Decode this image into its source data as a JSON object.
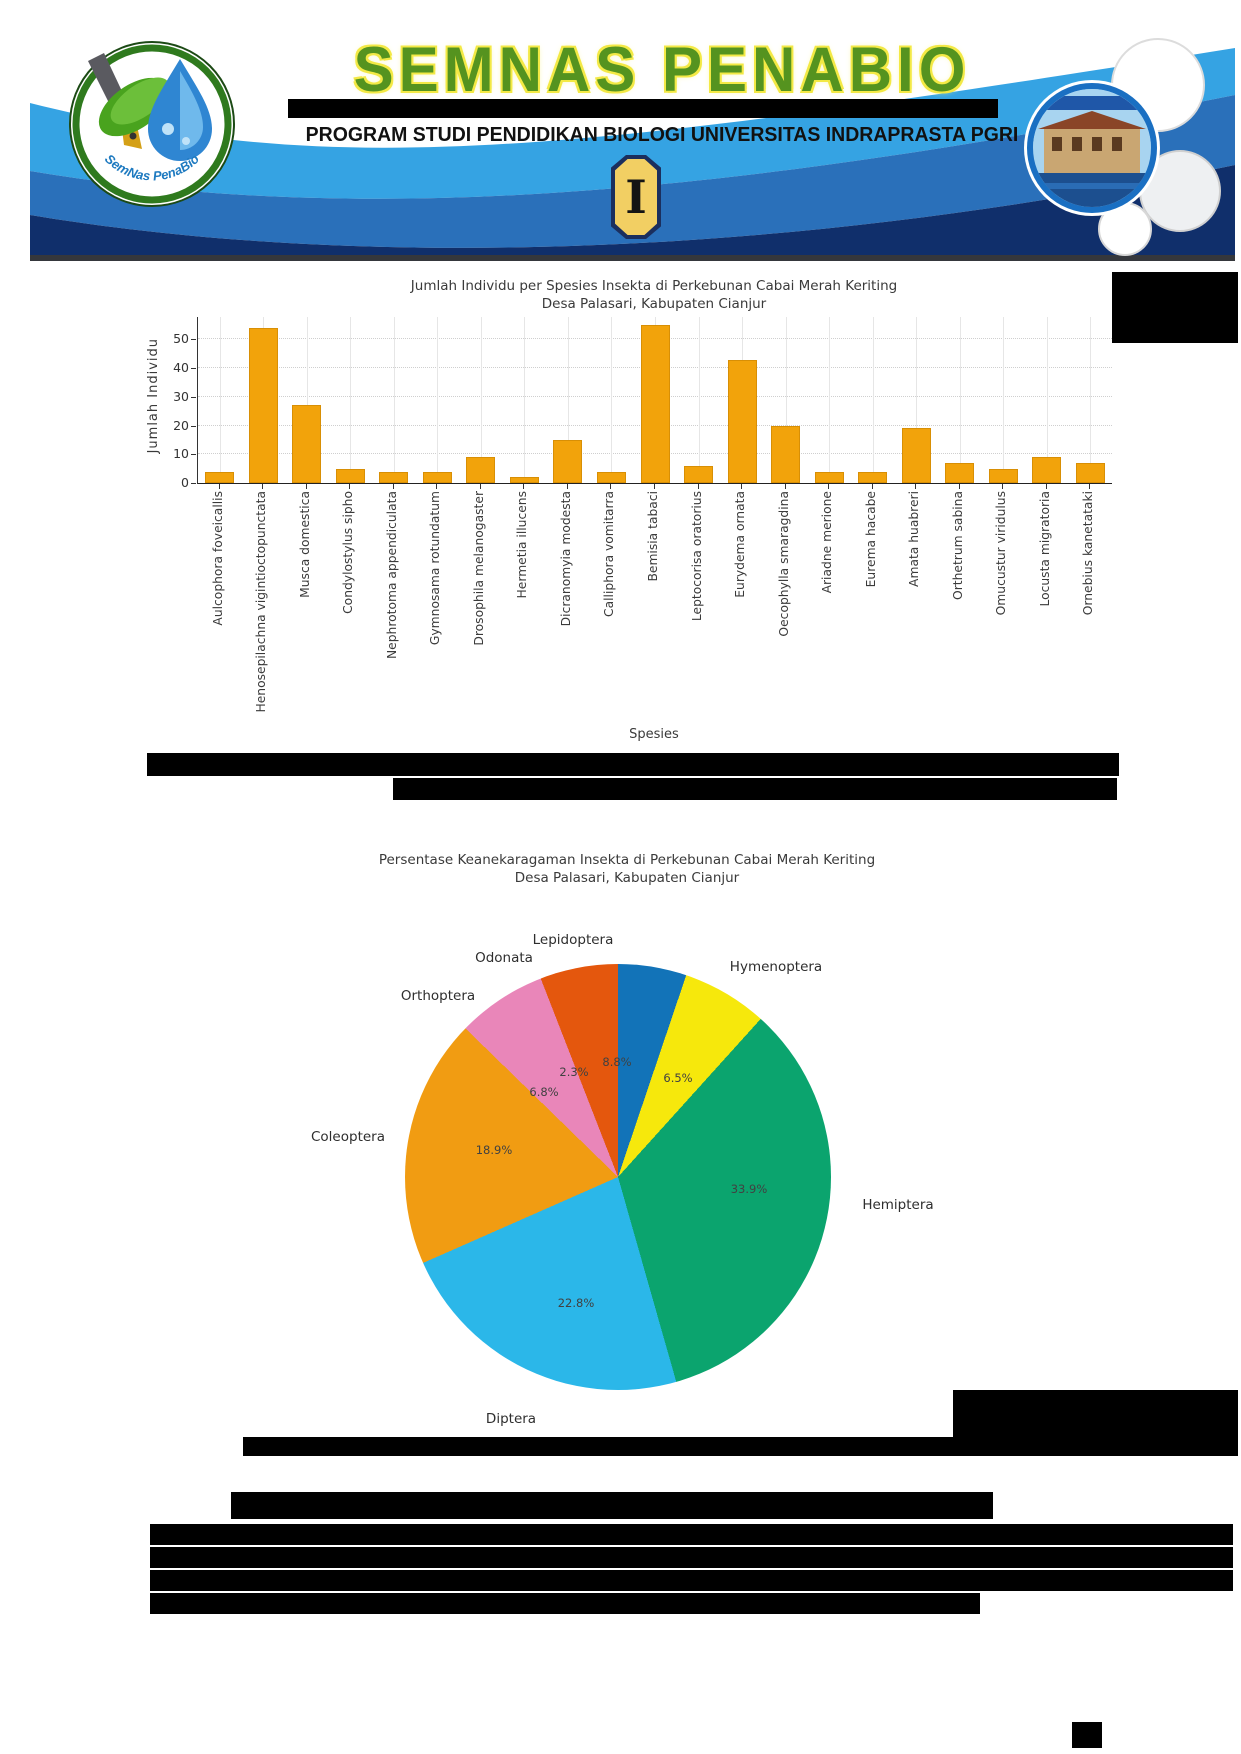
{
  "header": {
    "title": "SEMNAS PENABIO",
    "subtitle": "PROGRAM STUDI PENDIDIKAN BIOLOGI UNIVERSITAS INDRAPRASTA PGRI",
    "edition_badge": "I",
    "logo_ribbon_text": "SemNas PenaBio"
  },
  "chart_data": [
    {
      "type": "bar",
      "title": "Jumlah Individu per Spesies Insekta di Perkebunan Cabai Merah Keriting",
      "subtitle": "Desa Palasari, Kabupaten Cianjur",
      "xlabel": "Spesies",
      "ylabel": "Jumlah Individu",
      "yticks": [
        0,
        10,
        20,
        30,
        40,
        50
      ],
      "ylim": [
        0,
        57.8
      ],
      "grid": true,
      "bar_color": "#F2A30B",
      "categories": [
        "Aulcophora foveicallis",
        "Henosepilachna vigintioctopunctata",
        "Musca domestica",
        "Condylostylus sipho",
        "Nephrotoma appendiculata",
        "Gymnosama rotundatum",
        "Drosophila melanogaster",
        "Hermetia illucens",
        "Dicranomyia modesta",
        "Calliphora vomitarra",
        "Bemisia tabaci",
        "Leptocorisa oratorius",
        "Eurydema ornata",
        "Oecophylla smaragdina",
        "Ariadne merione",
        "Eurema hacabe",
        "Amata huabreri",
        "Orthetrum sabina",
        "Omucustur viridulus",
        "Locusta migratoria",
        "Ornebius kanetataki"
      ],
      "values": [
        4,
        54,
        27,
        5,
        4,
        4,
        9,
        2,
        15,
        4,
        55,
        6,
        43,
        20,
        4,
        4,
        19,
        7,
        5,
        9,
        7
      ]
    },
    {
      "type": "pie",
      "title": "Persentase Keanekaragaman Insekta di Perkebunan Cabai Merah Keriting",
      "subtitle": "Desa Palasari, Kabupaten Cianjur",
      "start_angle_deg": -13,
      "slices": [
        {
          "label": "Lepidoptera",
          "value": 8.8,
          "color": "#1273B8"
        },
        {
          "label": "Hymenoptera",
          "value": 6.5,
          "color": "#F6E80C"
        },
        {
          "label": "Hemiptera",
          "value": 33.9,
          "color": "#0BA46E"
        },
        {
          "label": "Diptera",
          "value": 22.8,
          "color": "#2BB7E9"
        },
        {
          "label": "Coleoptera",
          "value": 18.9,
          "color": "#F19C12"
        },
        {
          "label": "Orthoptera",
          "value": 6.8,
          "color": "#E986B9"
        },
        {
          "label": "Odonata",
          "value": 2.3,
          "color": "#E4570D"
        }
      ]
    }
  ]
}
